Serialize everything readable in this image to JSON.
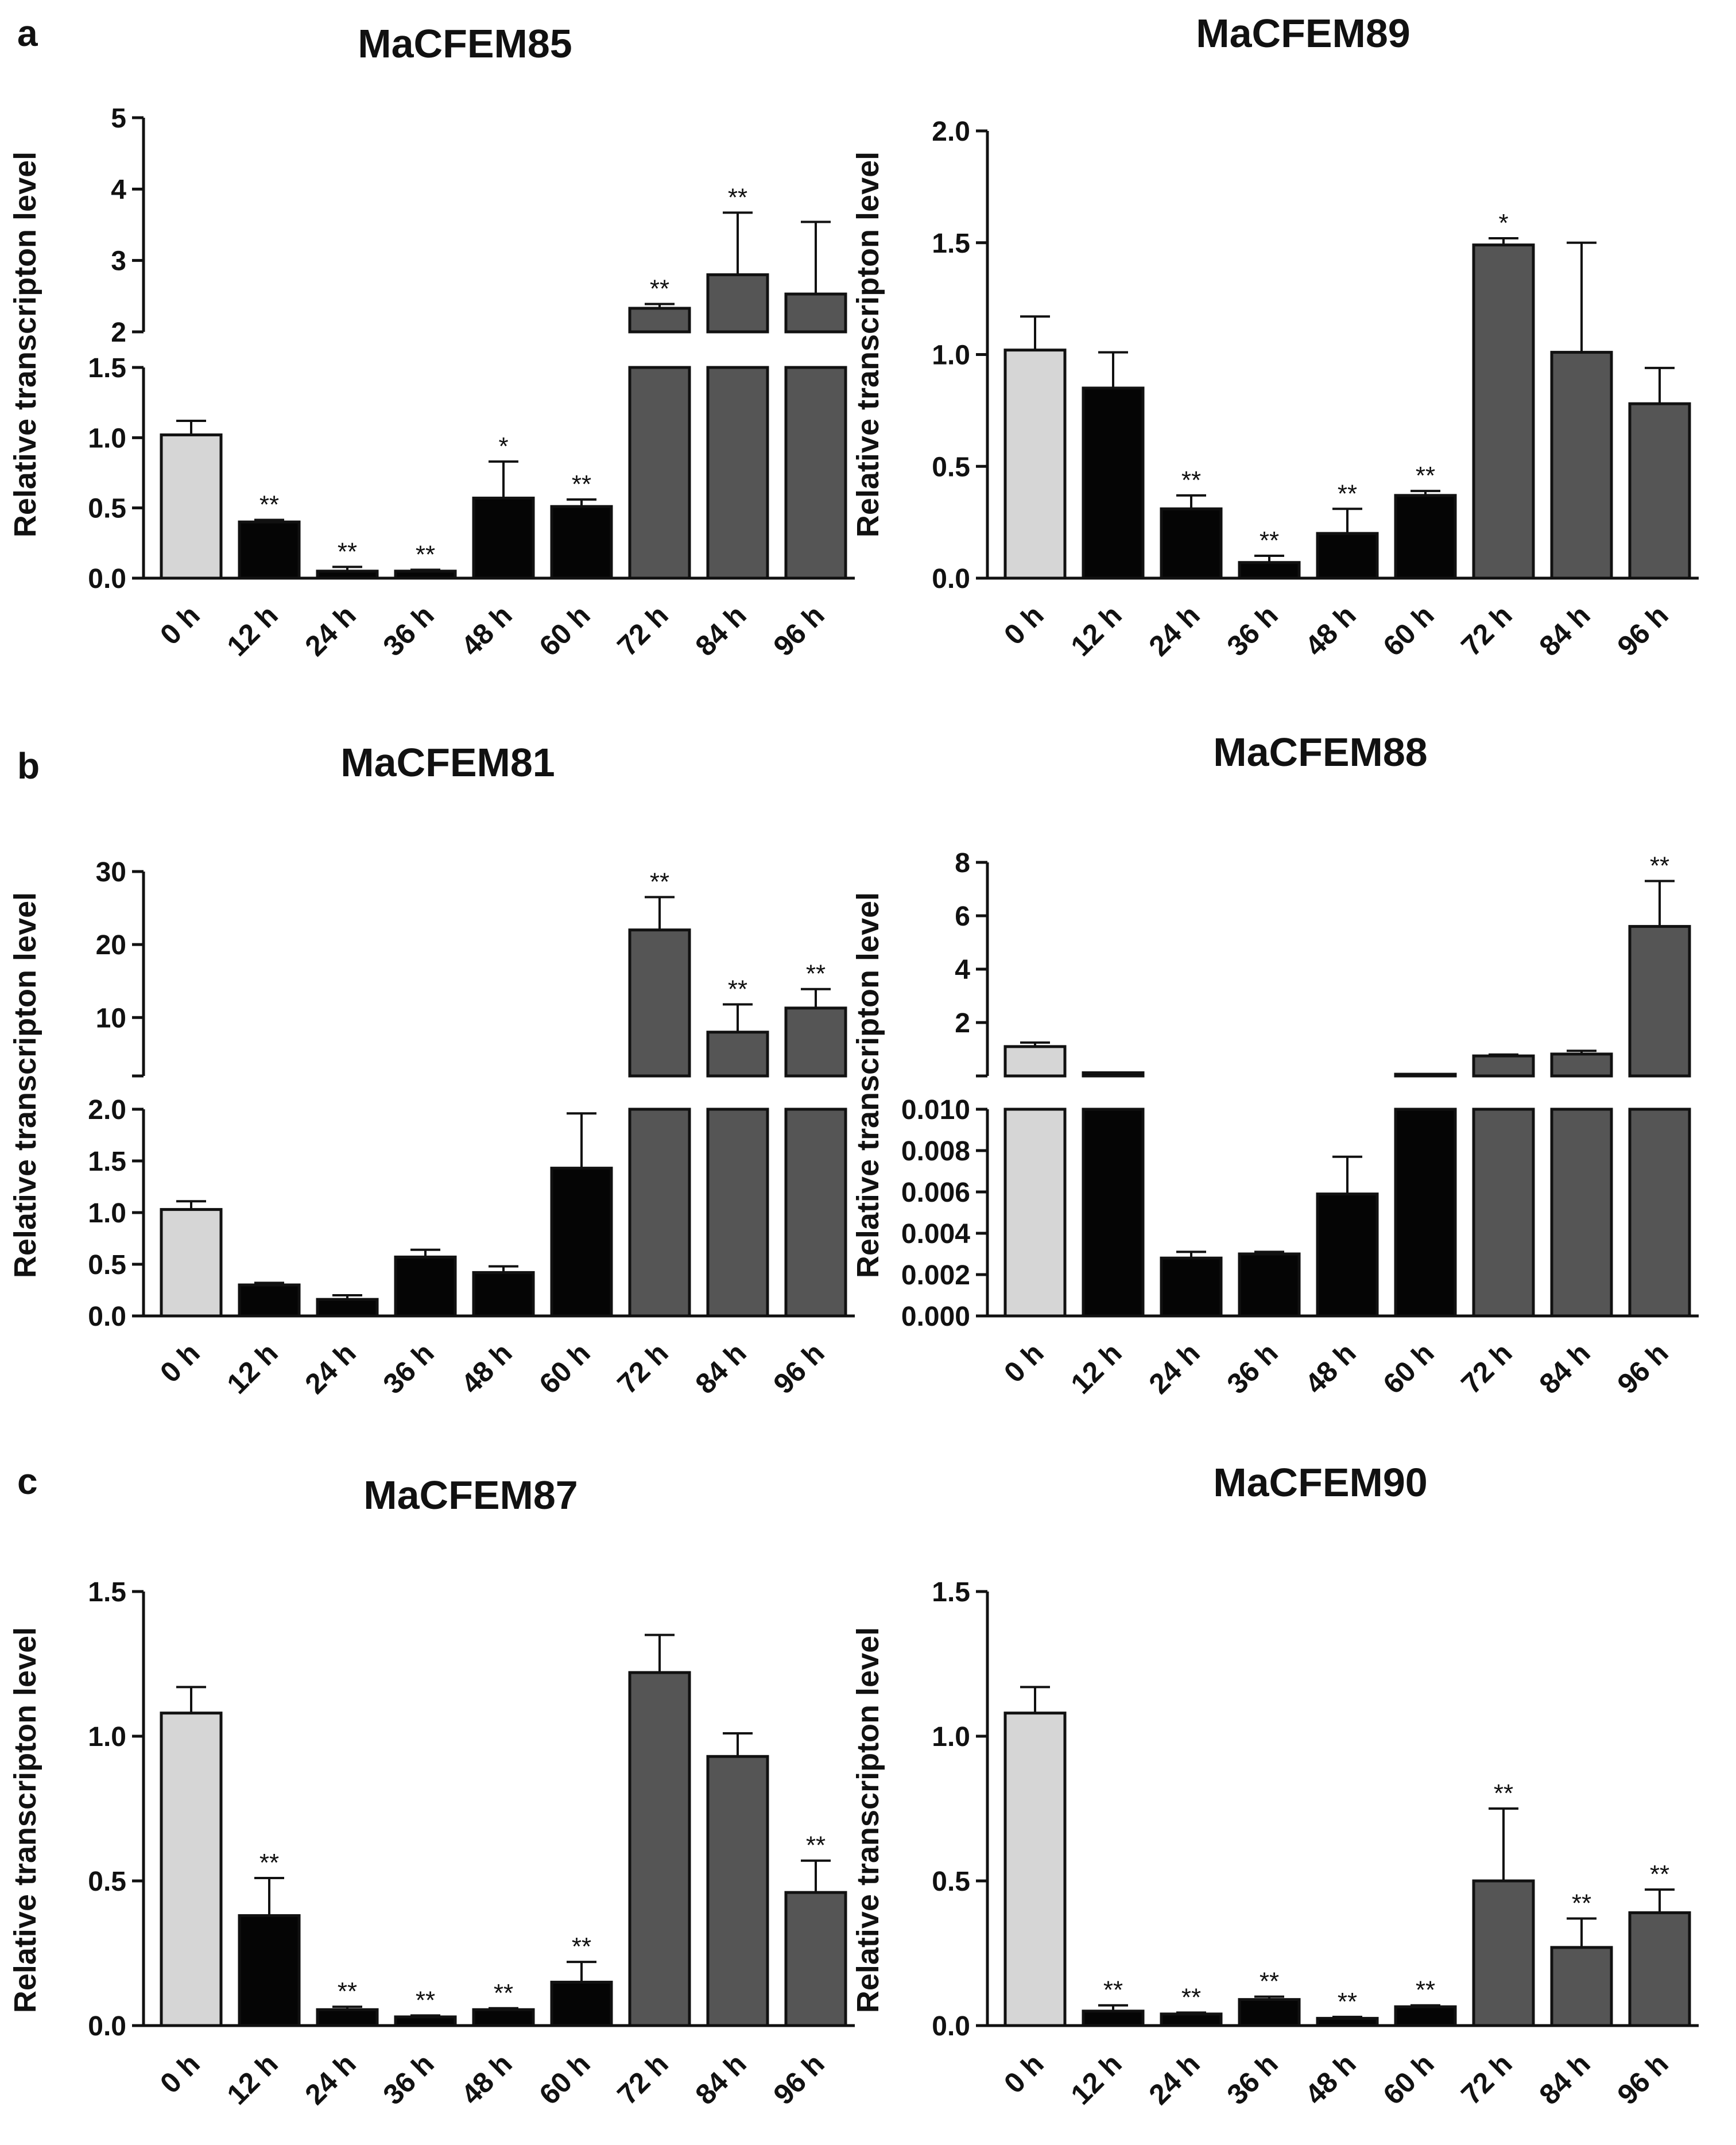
{
  "colors": {
    "control": "#d6d6d6",
    "early": "#050505",
    "late": "#555555",
    "outline": "#111111"
  },
  "panels": [
    {
      "letter": "a",
      "chart_indices": [
        0,
        1
      ]
    },
    {
      "letter": "b",
      "chart_indices": [
        2,
        3
      ]
    },
    {
      "letter": "c",
      "chart_indices": [
        4,
        5
      ]
    }
  ],
  "chart_data": [
    {
      "type": "bar",
      "title": "MaCFEM85",
      "ylabel": "Relative transcripton level",
      "categories": [
        "0 h",
        "12 h",
        "24 h",
        "36 h",
        "48 h",
        "60 h",
        "72 h",
        "84 h",
        "96 h"
      ],
      "values": [
        1.02,
        0.4,
        0.05,
        0.05,
        0.57,
        0.51,
        2.33,
        2.8,
        2.53
      ],
      "errors": [
        0.1,
        0.015,
        0.03,
        0.01,
        0.26,
        0.05,
        0.06,
        0.87,
        1.01
      ],
      "significance": [
        "",
        "**",
        "**",
        "**",
        "*",
        "**",
        "**",
        "**",
        ""
      ],
      "groups": [
        "control",
        "early",
        "early",
        "early",
        "early",
        "early",
        "late",
        "late",
        "late"
      ],
      "broken_axis": true,
      "lower": {
        "ylim": [
          0,
          1.5
        ],
        "ticks": [
          "0.0",
          "0.5",
          "1.0",
          "1.5"
        ]
      },
      "upper": {
        "ylim": [
          2,
          5
        ],
        "ticks": [
          "2",
          "3",
          "4",
          "5"
        ]
      }
    },
    {
      "type": "bar",
      "title": "MaCFEM89",
      "ylabel": "Relative transcripton level",
      "categories": [
        "0 h",
        "12 h",
        "24 h",
        "36 h",
        "48 h",
        "60 h",
        "72 h",
        "84 h",
        "96 h"
      ],
      "values": [
        1.02,
        0.85,
        0.31,
        0.07,
        0.2,
        0.37,
        1.49,
        1.01,
        0.78
      ],
      "errors": [
        0.15,
        0.16,
        0.06,
        0.03,
        0.11,
        0.02,
        0.03,
        0.49,
        0.16
      ],
      "significance": [
        "",
        "",
        "**",
        "**",
        "**",
        "**",
        "*",
        "",
        ""
      ],
      "groups": [
        "control",
        "early",
        "early",
        "early",
        "early",
        "early",
        "late",
        "late",
        "late"
      ],
      "broken_axis": false,
      "ylim": [
        0,
        2.0
      ],
      "ticks": [
        "0.0",
        "0.5",
        "1.0",
        "1.5",
        "2.0"
      ]
    },
    {
      "type": "bar",
      "title": "MaCFEM81",
      "ylabel": "Relative transcripton level",
      "categories": [
        "0 h",
        "12 h",
        "24 h",
        "36 h",
        "48 h",
        "60 h",
        "72 h",
        "84 h",
        "96 h"
      ],
      "values": [
        1.03,
        0.3,
        0.16,
        0.57,
        0.42,
        1.43,
        22,
        8,
        11.3
      ],
      "errors": [
        0.08,
        0.02,
        0.04,
        0.07,
        0.06,
        0.53,
        4.5,
        3.8,
        2.6
      ],
      "significance": [
        "",
        "",
        "",
        "",
        "",
        "",
        "**",
        "**",
        "**"
      ],
      "groups": [
        "control",
        "early",
        "early",
        "early",
        "early",
        "early",
        "late",
        "late",
        "late"
      ],
      "broken_axis": true,
      "lower": {
        "ylim": [
          0,
          2.0
        ],
        "ticks": [
          "0.0",
          "0.5",
          "1.0",
          "1.5",
          "2.0"
        ]
      },
      "upper": {
        "ylim": [
          2,
          30
        ],
        "ticks": [
          "10",
          "20",
          "30"
        ]
      }
    },
    {
      "type": "bar",
      "title": "MaCFEM88",
      "ylabel": "Relative transcripton level",
      "categories": [
        "0 h",
        "12 h",
        "24 h",
        "36 h",
        "48 h",
        "60 h",
        "72 h",
        "84 h",
        "96 h"
      ],
      "values": [
        1.1,
        0.12,
        0.0028,
        0.003,
        0.0059,
        0.03,
        0.75,
        0.82,
        5.6
      ],
      "errors": [
        0.15,
        0.0,
        0.0003,
        0.0001,
        0.0018,
        0.0,
        0.05,
        0.12,
        1.7
      ],
      "significance": [
        "",
        "",
        "",
        "",
        "",
        "",
        "",
        "",
        "**"
      ],
      "groups": [
        "control",
        "early",
        "early",
        "early",
        "early",
        "early",
        "late",
        "late",
        "late"
      ],
      "broken_axis": true,
      "lower": {
        "ylim": [
          0,
          0.01
        ],
        "ticks": [
          "0.000",
          "0.002",
          "0.004",
          "0.006",
          "0.008",
          "0.010"
        ]
      },
      "upper": {
        "ylim": [
          0,
          8
        ],
        "ticks": [
          "2",
          "4",
          "6",
          "8"
        ]
      }
    },
    {
      "type": "bar",
      "title": "MaCFEM87",
      "ylabel": "Relative transcripton level",
      "categories": [
        "0 h",
        "12 h",
        "24 h",
        "36 h",
        "48 h",
        "60 h",
        "72 h",
        "84 h",
        "96 h"
      ],
      "values": [
        1.08,
        0.38,
        0.055,
        0.03,
        0.055,
        0.15,
        1.22,
        0.93,
        0.46
      ],
      "errors": [
        0.09,
        0.13,
        0.01,
        0.005,
        0.005,
        0.07,
        0.13,
        0.08,
        0.11
      ],
      "significance": [
        "",
        "**",
        "**",
        "**",
        "**",
        "**",
        "",
        "",
        "**"
      ],
      "groups": [
        "control",
        "early",
        "early",
        "early",
        "early",
        "early",
        "late",
        "late",
        "late"
      ],
      "broken_axis": false,
      "ylim": [
        0,
        1.5
      ],
      "ticks": [
        "0.0",
        "0.5",
        "1.0",
        "1.5"
      ]
    },
    {
      "type": "bar",
      "title": "MaCFEM90",
      "ylabel": "Relative transcripton level",
      "categories": [
        "0 h",
        "12 h",
        "24 h",
        "36 h",
        "48 h",
        "60 h",
        "72 h",
        "84 h",
        "96 h"
      ],
      "values": [
        1.08,
        0.05,
        0.04,
        0.09,
        0.025,
        0.065,
        0.5,
        0.27,
        0.39
      ],
      "errors": [
        0.09,
        0.02,
        0.005,
        0.01,
        0.005,
        0.005,
        0.25,
        0.1,
        0.08
      ],
      "significance": [
        "",
        "**",
        "**",
        "**",
        "**",
        "**",
        "**",
        "**",
        "**"
      ],
      "groups": [
        "control",
        "early",
        "early",
        "early",
        "early",
        "early",
        "late",
        "late",
        "late"
      ],
      "broken_axis": false,
      "ylim": [
        0,
        1.5
      ],
      "ticks": [
        "0.0",
        "0.5",
        "1.0",
        "1.5"
      ]
    }
  ]
}
